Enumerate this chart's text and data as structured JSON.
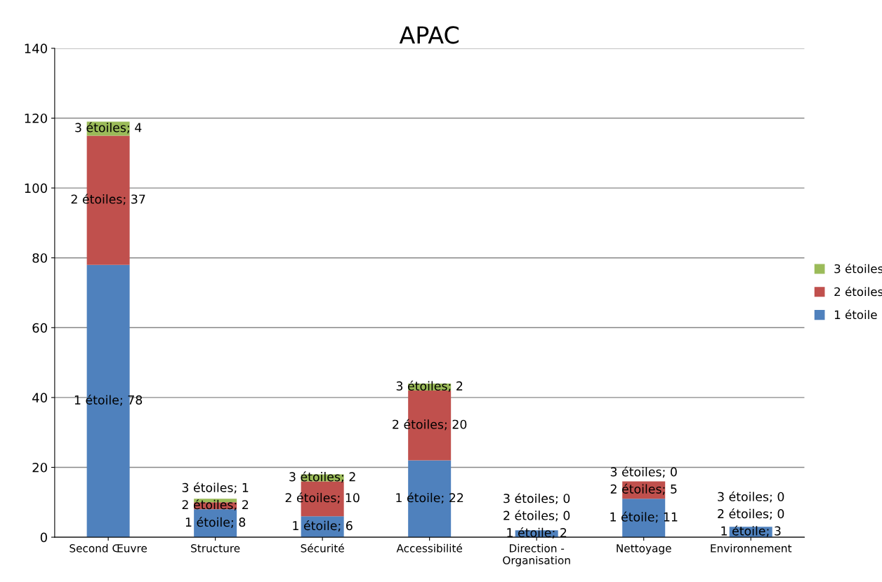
{
  "chart_data": {
    "type": "bar",
    "title": "APAC",
    "stacked": true,
    "categories": [
      "Second Œuvre",
      "Structure",
      "Sécurité",
      "Accessibilité",
      "Direction -\nOrganisation",
      "Nettoyage",
      "Environnement"
    ],
    "series": [
      {
        "name": "1 étoile",
        "color": "#4f81bd",
        "values": [
          78,
          8,
          6,
          22,
          2,
          11,
          3
        ],
        "value_labels": [
          "1 étoile; 78",
          "1 étoile; 8",
          "1 étoile; 6",
          "1 étoile; 22",
          "1 étoile; 2",
          "1 étoile; 11",
          "1 étoile; 3"
        ]
      },
      {
        "name": "2 étoiles",
        "color": "#c0504d",
        "values": [
          37,
          2,
          10,
          20,
          0,
          5,
          0
        ],
        "value_labels": [
          "2 étoiles; 37",
          "2 étoiles; 2",
          "2 étoiles; 10",
          "2 étoiles; 20",
          "2 étoiles; 0",
          "2 étoiles; 5",
          "2 étoiles; 0"
        ]
      },
      {
        "name": "3 étoiles",
        "color": "#9bbb59",
        "values": [
          4,
          1,
          2,
          2,
          0,
          0,
          0
        ],
        "value_labels": [
          "3 étoiles; 4",
          "3 étoiles; 1",
          "3 étoiles; 2",
          "3 étoiles; 2",
          "3 étoiles; 0",
          "3 étoiles; 0",
          "3 étoiles; 0"
        ]
      }
    ],
    "ylim": [
      0,
      140
    ],
    "yticks": [
      0,
      20,
      40,
      60,
      80,
      100,
      120,
      140
    ],
    "grid": "y",
    "legend": "right"
  }
}
